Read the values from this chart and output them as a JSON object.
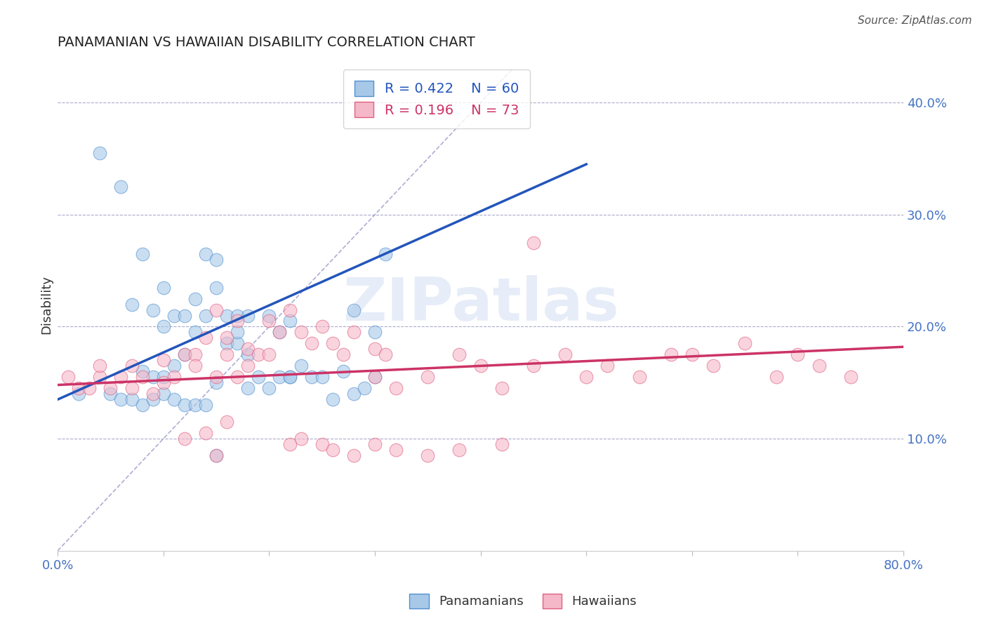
{
  "title": "PANAMANIAN VS HAWAIIAN DISABILITY CORRELATION CHART",
  "source": "Source: ZipAtlas.com",
  "ylabel": "Disability",
  "xlim": [
    0.0,
    0.8
  ],
  "ylim": [
    0.0,
    0.44
  ],
  "xticks": [
    0.0,
    0.1,
    0.2,
    0.3,
    0.4,
    0.5,
    0.6,
    0.7,
    0.8
  ],
  "xtick_labels_show": [
    "0.0%",
    "80.0%"
  ],
  "ytick_labels_right": [
    "10.0%",
    "20.0%",
    "30.0%",
    "40.0%"
  ],
  "yticks_right": [
    0.1,
    0.2,
    0.3,
    0.4
  ],
  "blue_R": 0.422,
  "blue_N": 60,
  "pink_R": 0.196,
  "pink_N": 73,
  "blue_color": "#a8c8e8",
  "pink_color": "#f5b8c8",
  "blue_edge_color": "#5090d0",
  "pink_edge_color": "#e06080",
  "blue_line_color": "#2255bb",
  "pink_line_color": "#cc3366",
  "ref_line_color": "#9999cc",
  "watermark_text": "ZIPatlas",
  "blue_scatter_x": [
    0.02,
    0.04,
    0.06,
    0.07,
    0.08,
    0.08,
    0.09,
    0.09,
    0.1,
    0.1,
    0.1,
    0.11,
    0.11,
    0.12,
    0.12,
    0.13,
    0.13,
    0.14,
    0.14,
    0.15,
    0.15,
    0.15,
    0.16,
    0.16,
    0.17,
    0.17,
    0.17,
    0.18,
    0.18,
    0.18,
    0.19,
    0.2,
    0.2,
    0.21,
    0.21,
    0.22,
    0.22,
    0.23,
    0.24,
    0.25,
    0.26,
    0.27,
    0.28,
    0.28,
    0.29,
    0.3,
    0.3,
    0.31,
    0.05,
    0.06,
    0.07,
    0.08,
    0.09,
    0.1,
    0.11,
    0.12,
    0.13,
    0.14,
    0.15,
    0.22
  ],
  "blue_scatter_y": [
    0.14,
    0.355,
    0.325,
    0.22,
    0.16,
    0.265,
    0.155,
    0.215,
    0.2,
    0.235,
    0.155,
    0.165,
    0.21,
    0.175,
    0.21,
    0.195,
    0.225,
    0.265,
    0.21,
    0.235,
    0.26,
    0.15,
    0.21,
    0.185,
    0.185,
    0.195,
    0.21,
    0.145,
    0.21,
    0.175,
    0.155,
    0.21,
    0.145,
    0.155,
    0.195,
    0.155,
    0.205,
    0.165,
    0.155,
    0.155,
    0.135,
    0.16,
    0.215,
    0.14,
    0.145,
    0.195,
    0.155,
    0.265,
    0.14,
    0.135,
    0.135,
    0.13,
    0.135,
    0.14,
    0.135,
    0.13,
    0.13,
    0.13,
    0.085,
    0.155
  ],
  "pink_scatter_x": [
    0.01,
    0.02,
    0.03,
    0.04,
    0.04,
    0.05,
    0.06,
    0.07,
    0.07,
    0.08,
    0.09,
    0.1,
    0.1,
    0.11,
    0.12,
    0.13,
    0.13,
    0.14,
    0.15,
    0.15,
    0.16,
    0.16,
    0.17,
    0.17,
    0.18,
    0.18,
    0.19,
    0.2,
    0.2,
    0.21,
    0.22,
    0.23,
    0.24,
    0.25,
    0.26,
    0.27,
    0.28,
    0.3,
    0.3,
    0.31,
    0.32,
    0.35,
    0.38,
    0.4,
    0.42,
    0.45,
    0.48,
    0.5,
    0.52,
    0.55,
    0.58,
    0.6,
    0.62,
    0.65,
    0.68,
    0.7,
    0.72,
    0.75,
    0.12,
    0.14,
    0.15,
    0.16,
    0.22,
    0.23,
    0.25,
    0.26,
    0.28,
    0.3,
    0.32,
    0.35,
    0.38,
    0.42,
    0.45
  ],
  "pink_scatter_y": [
    0.155,
    0.145,
    0.145,
    0.155,
    0.165,
    0.145,
    0.155,
    0.145,
    0.165,
    0.155,
    0.14,
    0.15,
    0.17,
    0.155,
    0.175,
    0.175,
    0.165,
    0.19,
    0.215,
    0.155,
    0.175,
    0.19,
    0.155,
    0.205,
    0.18,
    0.165,
    0.175,
    0.205,
    0.175,
    0.195,
    0.215,
    0.195,
    0.185,
    0.2,
    0.185,
    0.175,
    0.195,
    0.155,
    0.18,
    0.175,
    0.145,
    0.155,
    0.175,
    0.165,
    0.145,
    0.165,
    0.175,
    0.155,
    0.165,
    0.155,
    0.175,
    0.175,
    0.165,
    0.185,
    0.155,
    0.175,
    0.165,
    0.155,
    0.1,
    0.105,
    0.085,
    0.115,
    0.095,
    0.1,
    0.095,
    0.09,
    0.085,
    0.095,
    0.09,
    0.085,
    0.09,
    0.095,
    0.275
  ],
  "blue_trend_x": [
    0.0,
    0.5
  ],
  "blue_trend_y": [
    0.135,
    0.345
  ],
  "pink_trend_x": [
    0.0,
    0.8
  ],
  "pink_trend_y": [
    0.148,
    0.182
  ],
  "ref_line_x": [
    0.0,
    0.43
  ],
  "ref_line_y": [
    0.0,
    0.43
  ]
}
